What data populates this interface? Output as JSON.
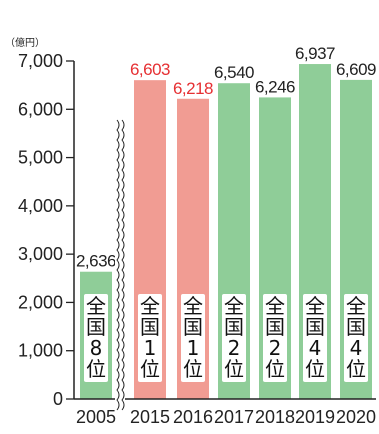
{
  "chart_data": {
    "type": "bar",
    "unit_label": "（億円）",
    "ylim": [
      0,
      7000
    ],
    "y_ticks": [
      "0",
      "1,000",
      "2,000",
      "3,000",
      "4,000",
      "5,000",
      "6,000",
      "7,000"
    ],
    "y_tick_values": [
      0,
      1000,
      2000,
      3000,
      4000,
      5000,
      6000,
      7000
    ],
    "axis_break_between": [
      "2005",
      "2015"
    ],
    "categories": [
      "2005",
      "2015",
      "2016",
      "2017",
      "2018",
      "2019",
      "2020"
    ],
    "values": [
      2636,
      6603,
      6218,
      6540,
      6246,
      6937,
      6609
    ],
    "value_labels": [
      "2,636",
      "6,603",
      "6,218",
      "6,540",
      "6,246",
      "6,937",
      "6,609"
    ],
    "rank_labels": [
      [
        "全",
        "国",
        "8",
        "位"
      ],
      [
        "全",
        "国",
        "1",
        "位"
      ],
      [
        "全",
        "国",
        "1",
        "位"
      ],
      [
        "全",
        "国",
        "2",
        "位"
      ],
      [
        "全",
        "国",
        "2",
        "位"
      ],
      [
        "全",
        "国",
        "4",
        "位"
      ],
      [
        "全",
        "国",
        "4",
        "位"
      ]
    ],
    "highlighted": [
      false,
      true,
      true,
      false,
      false,
      false,
      false
    ],
    "colors": {
      "bar_default": "#8fcd98",
      "bar_highlight": "#f19c93",
      "label_default": "#222222",
      "label_highlight": "#e63033",
      "rank_box": "#ffffff",
      "axis": "#222222"
    }
  }
}
